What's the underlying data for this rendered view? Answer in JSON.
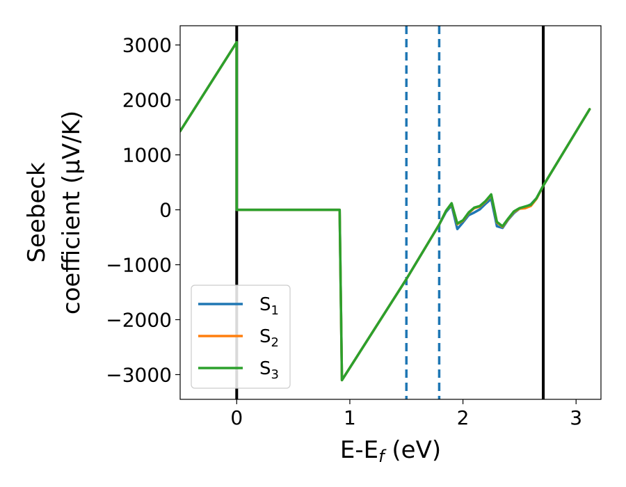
{
  "chart_data": {
    "type": "line",
    "xlabel": "E-E",
    "xlabel_sub": "f",
    "xlabel_unit": " (eV)",
    "ylabel_line1": "Seebeck",
    "ylabel_line2": "coefficient  (μV/K)",
    "xlim": [
      -0.5,
      3.22
    ],
    "ylim": [
      -3450,
      3350
    ],
    "xticks": [
      0,
      1,
      2,
      3
    ],
    "xtick_labels": [
      "0",
      "1",
      "2",
      "3"
    ],
    "yticks": [
      3000,
      2000,
      1000,
      0,
      -1000,
      -2000,
      -3000
    ],
    "ytick_labels": [
      "3000",
      "2000",
      "1000",
      "0",
      "−1000",
      "−2000",
      "−3000"
    ],
    "grid": false,
    "legend_position": "lower-left",
    "vertical_lines": [
      {
        "x": 0.0,
        "style": "solid",
        "color": "#000000"
      },
      {
        "x": 1.5,
        "style": "dashed",
        "color": "#1f77b4"
      },
      {
        "x": 1.79,
        "style": "dashed",
        "color": "#1f77b4"
      },
      {
        "x": 2.71,
        "style": "solid",
        "color": "#000000"
      }
    ],
    "series": [
      {
        "name": "S1",
        "label_main": "S",
        "label_sub": "1",
        "color": "#1f77b4",
        "x": [
          -0.5,
          0.0,
          0.0,
          0.91,
          0.93,
          1.5,
          1.79,
          1.85,
          1.9,
          1.95,
          2.0,
          2.05,
          2.1,
          2.15,
          2.2,
          2.25,
          2.3,
          2.35,
          2.4,
          2.45,
          2.5,
          2.55,
          2.6,
          2.65,
          2.71,
          3.12
        ],
        "y": [
          1430,
          3050,
          0,
          0,
          -3100,
          -1260,
          -270,
          -40,
          80,
          -350,
          -230,
          -100,
          -50,
          10,
          110,
          200,
          -300,
          -330,
          -180,
          -60,
          20,
          50,
          100,
          210,
          440,
          1830
        ]
      },
      {
        "name": "S2",
        "label_main": "S",
        "label_sub": "2",
        "color": "#ff7f0e",
        "x": [
          -0.5,
          0.0,
          0.0,
          0.91,
          0.93,
          1.5,
          1.79,
          1.85,
          1.9,
          1.95,
          2.0,
          2.05,
          2.1,
          2.15,
          2.2,
          2.25,
          2.3,
          2.35,
          2.4,
          2.45,
          2.5,
          2.55,
          2.6,
          2.65,
          2.71,
          3.12
        ],
        "y": [
          1430,
          3050,
          0,
          0,
          -3100,
          -1260,
          -270,
          -20,
          110,
          -260,
          -200,
          -60,
          30,
          60,
          150,
          270,
          -230,
          -310,
          -170,
          -40,
          20,
          30,
          70,
          200,
          440,
          1830
        ]
      },
      {
        "name": "S3",
        "label_main": "S",
        "label_sub": "3",
        "color": "#2ca02c",
        "x": [
          -0.5,
          0.0,
          0.0,
          0.91,
          0.93,
          1.5,
          1.79,
          1.85,
          1.9,
          1.95,
          2.0,
          2.05,
          2.1,
          2.15,
          2.2,
          2.25,
          2.3,
          2.35,
          2.4,
          2.45,
          2.5,
          2.55,
          2.6,
          2.65,
          2.71,
          3.12
        ],
        "y": [
          1430,
          3050,
          0,
          0,
          -3100,
          -1260,
          -270,
          -20,
          120,
          -250,
          -190,
          -50,
          40,
          70,
          160,
          280,
          -220,
          -300,
          -160,
          -30,
          30,
          60,
          90,
          210,
          440,
          1830
        ]
      }
    ]
  }
}
